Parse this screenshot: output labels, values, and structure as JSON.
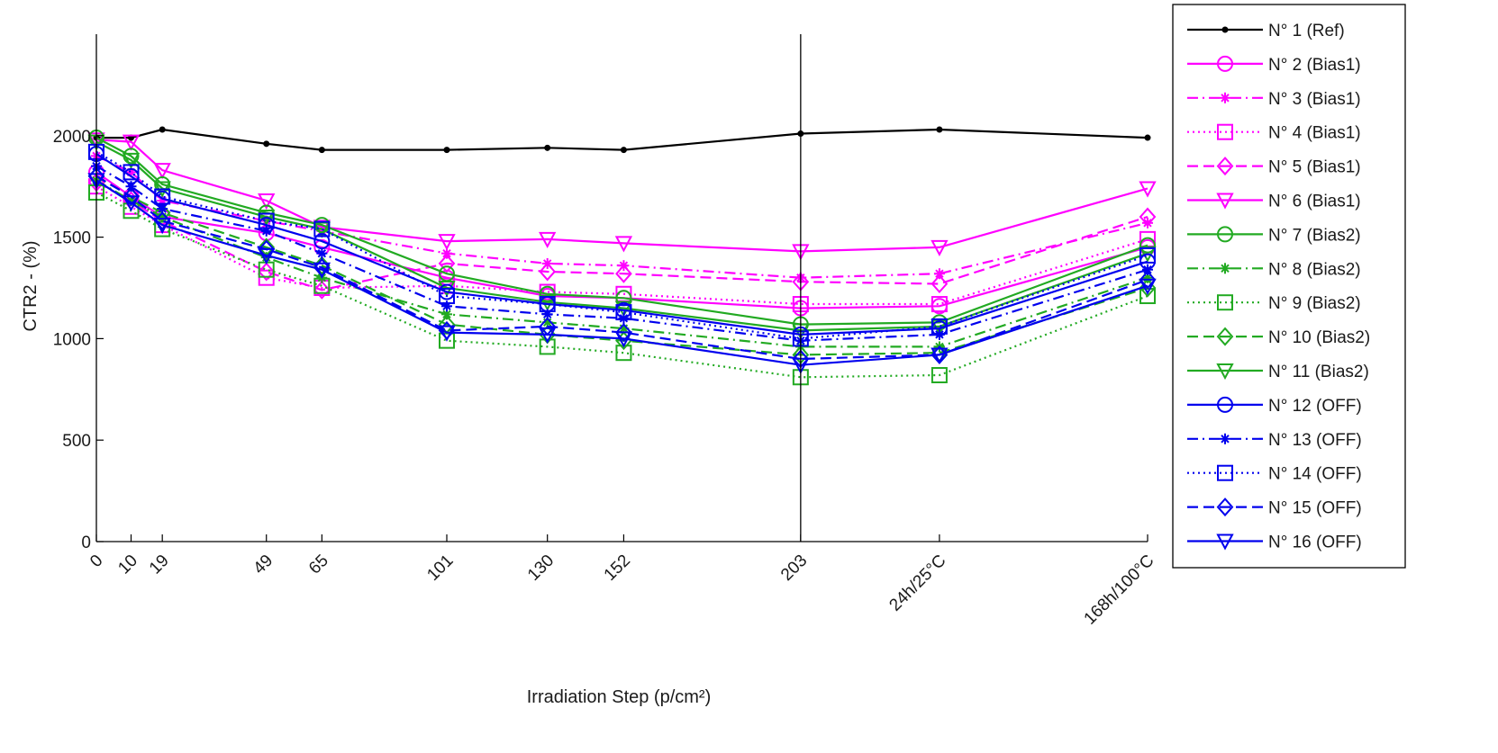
{
  "chart_data": {
    "type": "line",
    "xlabel": "Irradiation Step (p/cm²)",
    "ylabel": "CTR2 - (%)",
    "ylim": [
      0,
      2500
    ],
    "yticks": [
      0,
      500,
      1000,
      1500,
      2000
    ],
    "categories": [
      "0",
      "10",
      "19",
      "49",
      "65",
      "101",
      "130",
      "152",
      "203",
      "24h/25°C",
      "168h/100°C"
    ],
    "x": [
      0,
      10,
      19,
      49,
      65,
      101,
      130,
      152,
      203,
      243,
      303
    ],
    "xlim": [
      0,
      303
    ],
    "vertical_line_at_category": "203",
    "grid": false,
    "legend_position": "right-outside",
    "series": [
      {
        "name": "N° 1 (Ref)",
        "color": "#000000",
        "dash": "solid",
        "marker": "point",
        "values": [
          1990,
          1990,
          2030,
          1960,
          1930,
          1930,
          1940,
          1930,
          2010,
          2030,
          1990
        ]
      },
      {
        "name": "N° 2 (Bias1)",
        "color": "#ff00ff",
        "dash": "solid",
        "marker": "circle",
        "values": [
          1820,
          1700,
          1600,
          1520,
          1450,
          1300,
          1210,
          1200,
          1150,
          1160,
          1450
        ]
      },
      {
        "name": "N° 3 (Bias1)",
        "color": "#ff00ff",
        "dash": "dashdot",
        "marker": "star",
        "values": [
          1900,
          1820,
          1680,
          1580,
          1530,
          1420,
          1370,
          1360,
          1300,
          1320,
          1570
        ]
      },
      {
        "name": "N° 4 (Bias1)",
        "color": "#ff00ff",
        "dash": "dotted",
        "marker": "square",
        "values": [
          1750,
          1650,
          1560,
          1300,
          1250,
          1260,
          1230,
          1220,
          1170,
          1170,
          1490
        ]
      },
      {
        "name": "N° 5 (Bias1)",
        "color": "#ff00ff",
        "dash": "dashed",
        "marker": "diamond",
        "values": [
          1770,
          1680,
          1580,
          1330,
          1240,
          1370,
          1330,
          1320,
          1280,
          1270,
          1600
        ]
      },
      {
        "name": "N° 6 (Bias1)",
        "color": "#ff00ff",
        "dash": "solid",
        "marker": "triangle-down",
        "values": [
          1980,
          1970,
          1830,
          1680,
          1550,
          1480,
          1490,
          1470,
          1430,
          1450,
          1740
        ]
      },
      {
        "name": "N° 7 (Bias2)",
        "color": "#22aa22",
        "dash": "solid",
        "marker": "circle",
        "values": [
          1990,
          1900,
          1760,
          1620,
          1560,
          1320,
          1220,
          1200,
          1070,
          1080,
          1460
        ]
      },
      {
        "name": "N° 8 (Bias2)",
        "color": "#22aa22",
        "dash": "dashdot",
        "marker": "star",
        "values": [
          1780,
          1680,
          1600,
          1400,
          1300,
          1120,
          1080,
          1050,
          960,
          960,
          1300
        ]
      },
      {
        "name": "N° 9 (Bias2)",
        "color": "#22aa22",
        "dash": "dotted",
        "marker": "square",
        "values": [
          1720,
          1630,
          1540,
          1340,
          1260,
          990,
          960,
          930,
          810,
          820,
          1210
        ]
      },
      {
        "name": "N° 10 (Bias2)",
        "color": "#22aa22",
        "dash": "dashed",
        "marker": "diamond",
        "values": [
          1800,
          1700,
          1620,
          1450,
          1360,
          1070,
          1020,
          990,
          920,
          930,
          1250
        ]
      },
      {
        "name": "N° 11 (Bias2)",
        "color": "#22aa22",
        "dash": "solid",
        "marker": "triangle-down",
        "values": [
          1970,
          1880,
          1740,
          1600,
          1540,
          1250,
          1180,
          1150,
          1040,
          1060,
          1420
        ]
      },
      {
        "name": "N° 12 (OFF)",
        "color": "#0000ee",
        "dash": "solid",
        "marker": "circle",
        "values": [
          1910,
          1800,
          1690,
          1560,
          1480,
          1230,
          1170,
          1140,
          1020,
          1050,
          1380
        ]
      },
      {
        "name": "N° 13 (OFF)",
        "color": "#0000ee",
        "dash": "dashdot",
        "marker": "star",
        "values": [
          1850,
          1750,
          1640,
          1530,
          1420,
          1160,
          1120,
          1100,
          990,
          1020,
          1340
        ]
      },
      {
        "name": "N° 14 (OFF)",
        "color": "#0000ee",
        "dash": "dotted",
        "marker": "square",
        "values": [
          1920,
          1820,
          1700,
          1580,
          1540,
          1210,
          1170,
          1130,
          1000,
          1060,
          1410
        ]
      },
      {
        "name": "N° 15 (OFF)",
        "color": "#0000ee",
        "dash": "dashed",
        "marker": "diamond",
        "values": [
          1800,
          1700,
          1580,
          1440,
          1350,
          1040,
          1060,
          1030,
          900,
          920,
          1290
        ]
      },
      {
        "name": "N° 16 (OFF)",
        "color": "#0000ee",
        "dash": "solid",
        "marker": "triangle-down",
        "values": [
          1780,
          1670,
          1560,
          1410,
          1340,
          1030,
          1020,
          1000,
          870,
          920,
          1260
        ]
      }
    ]
  }
}
